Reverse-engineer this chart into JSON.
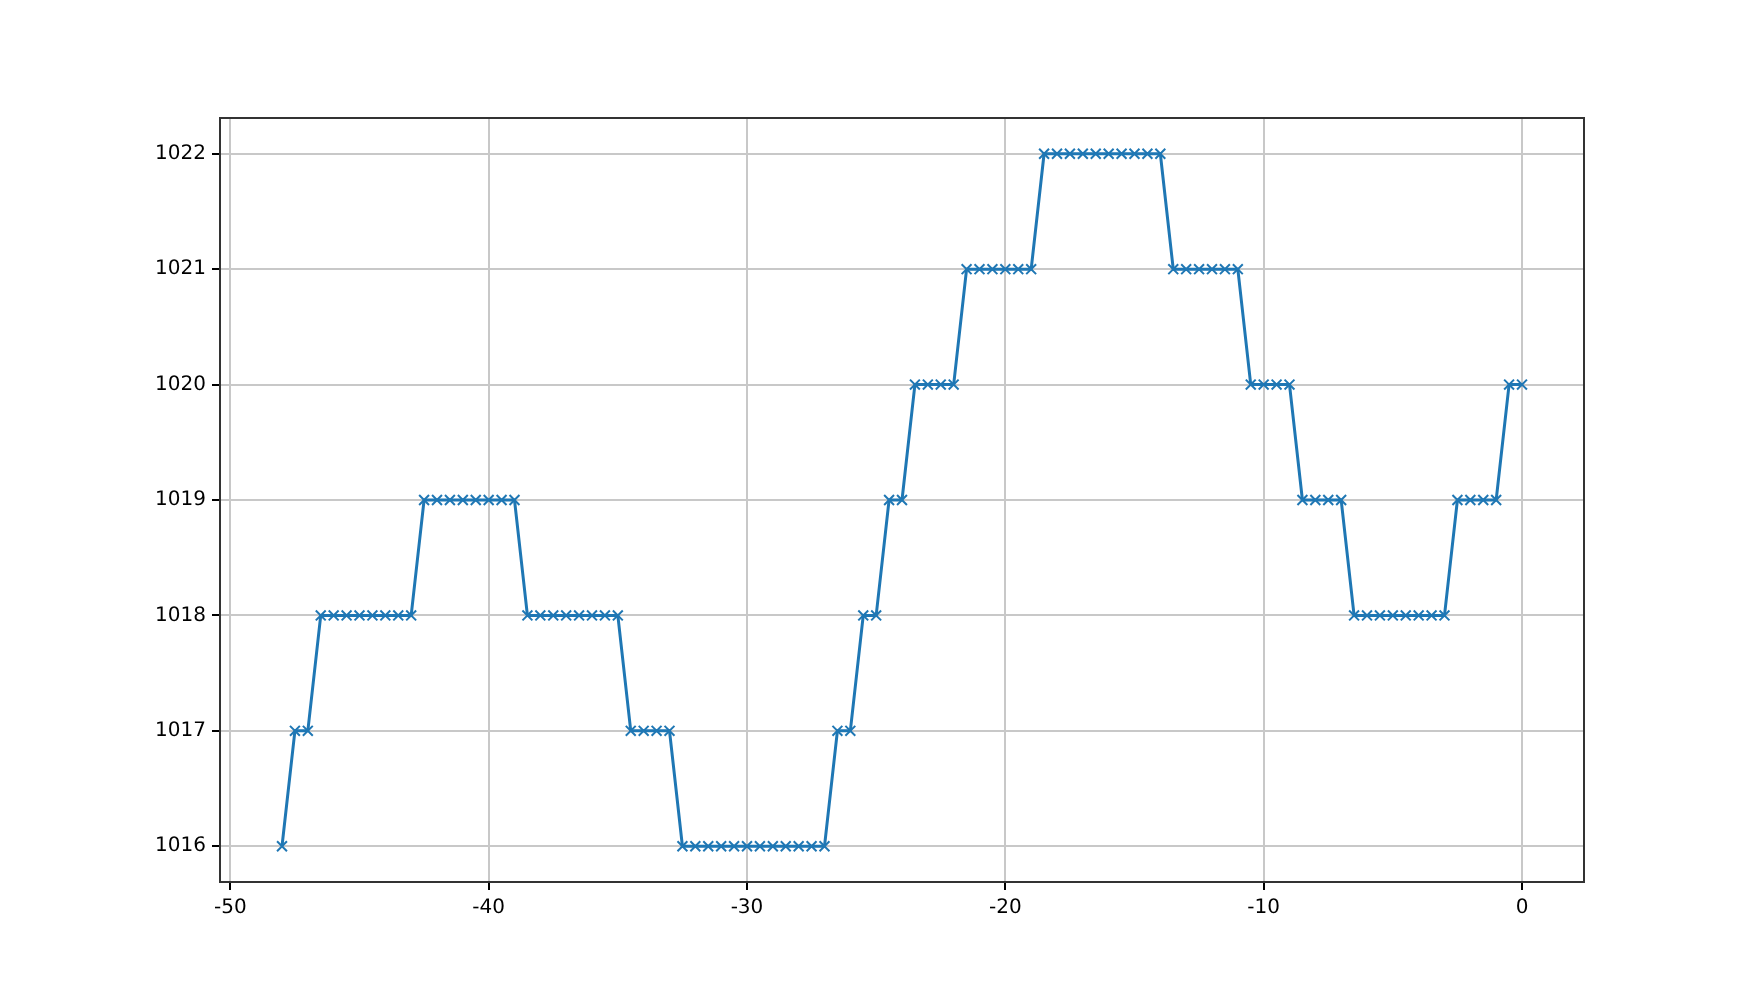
{
  "chart_data": {
    "type": "line",
    "marker": "cross",
    "line_style": "solid",
    "grid": true,
    "x": [
      -48,
      -47.5,
      -47,
      -46.5,
      -46,
      -45.5,
      -45,
      -44.5,
      -44,
      -43.5,
      -43,
      -42.5,
      -42,
      -41.5,
      -41,
      -40.5,
      -40,
      -39.5,
      -39,
      -38.5,
      -38,
      -37.5,
      -37,
      -36.5,
      -36,
      -35.5,
      -35,
      -34.5,
      -34,
      -33.5,
      -33,
      -32.5,
      -32,
      -31.5,
      -31,
      -30.5,
      -30,
      -29.5,
      -29,
      -28.5,
      -28,
      -27.5,
      -27,
      -26.5,
      -26,
      -25.5,
      -25,
      -24.5,
      -24,
      -23.5,
      -23,
      -22.5,
      -22,
      -21.5,
      -21,
      -20.5,
      -20,
      -19.5,
      -19,
      -18.5,
      -18,
      -17.5,
      -17,
      -16.5,
      -16,
      -15.5,
      -15,
      -14.5,
      -14,
      -13.5,
      -13,
      -12.5,
      -12,
      -11.5,
      -11,
      -10.5,
      -10,
      -9.5,
      -9,
      -8.5,
      -8,
      -7.5,
      -7,
      -6.5,
      -6,
      -5.5,
      -5,
      -4.5,
      -4,
      -3.5,
      -3,
      -2.5,
      -2,
      -1.5,
      -1,
      -0.5,
      0
    ],
    "series": [
      {
        "color": "#1f77b4",
        "values": [
          1016,
          1017,
          1017,
          1018,
          1018,
          1018,
          1018,
          1018,
          1018,
          1018,
          1018,
          1019,
          1019,
          1019,
          1019,
          1019,
          1019,
          1019,
          1019,
          1018,
          1018,
          1018,
          1018,
          1018,
          1018,
          1018,
          1018,
          1017,
          1017,
          1017,
          1017,
          1016,
          1016,
          1016,
          1016,
          1016,
          1016,
          1016,
          1016,
          1016,
          1016,
          1016,
          1016,
          1017,
          1017,
          1018,
          1018,
          1019,
          1019,
          1020,
          1020,
          1020,
          1020,
          1021,
          1021,
          1021,
          1021,
          1021,
          1021,
          1022,
          1022,
          1022,
          1022,
          1022,
          1022,
          1022,
          1022,
          1022,
          1022,
          1021,
          1021,
          1021,
          1021,
          1021,
          1021,
          1020,
          1020,
          1020,
          1020,
          1019,
          1019,
          1019,
          1019,
          1018,
          1018,
          1018,
          1018,
          1018,
          1018,
          1018,
          1018,
          1019,
          1019,
          1019,
          1019,
          1020,
          1020
        ]
      }
    ],
    "xlim": [
      -50.4,
      2.4
    ],
    "xticks": [
      -50,
      -40,
      -30,
      -20,
      -10,
      0
    ],
    "ylim": [
      1015.69,
      1022.31
    ],
    "yticks": [
      1016,
      1017,
      1018,
      1019,
      1020,
      1021,
      1022
    ]
  }
}
